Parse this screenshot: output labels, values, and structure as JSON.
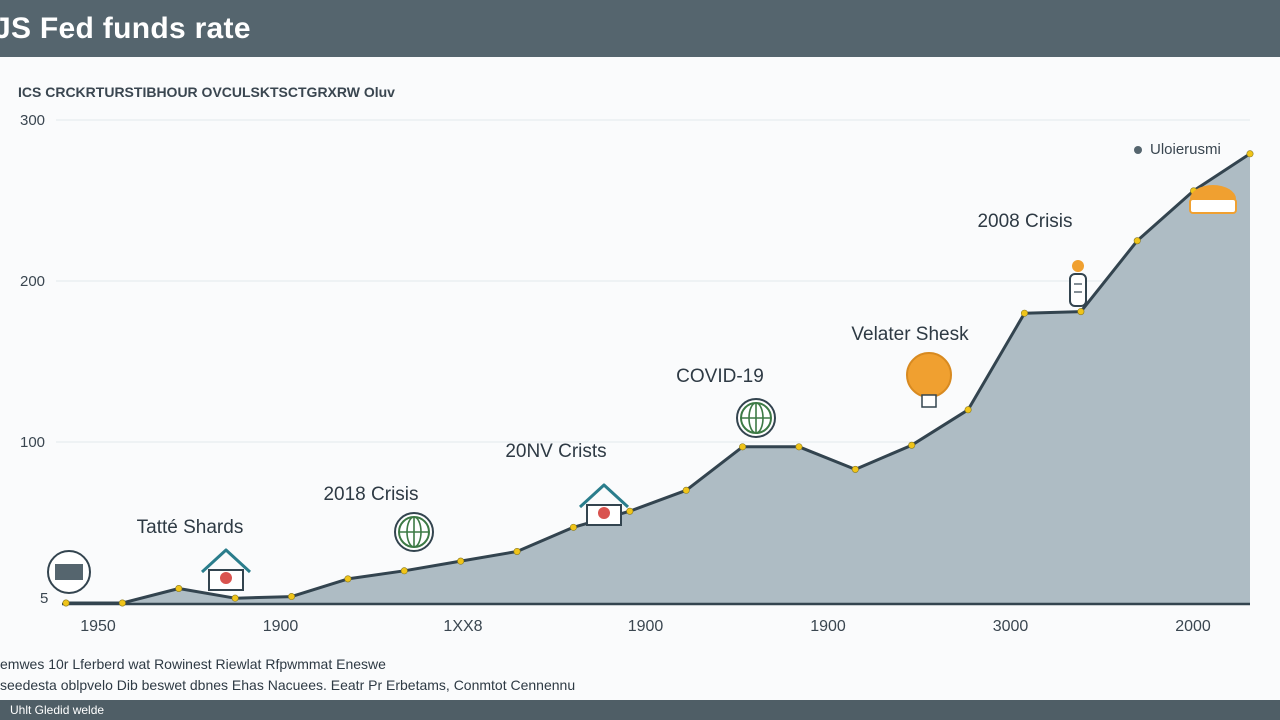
{
  "header": {
    "title": "JS Fed funds rate"
  },
  "subtitle": "ICS CRCKRTURSTIBHOUR OVCULSKTSCTGRXRW Oluv",
  "legend": {
    "label": "Uloierusmi"
  },
  "sources": [
    "emwes 10r Lferberd wat Rowinest Riewlat Rfpwmmat Eneswe",
    "seedesta oblpvelo Dib beswet dbnes Ehas Nacuees. Eeatr Pr Erbetams, Conmtot Cennennu"
  ],
  "footer": {
    "text": "Uhlt Gledid welde"
  },
  "colors": {
    "header": "#55656e",
    "area_fill": "#aebcc4",
    "line": "#33444f",
    "point": "#f0c419",
    "accent_orange": "#f0a030",
    "icon_green": "#3d7a45",
    "icon_teal": "#2a7d8c"
  },
  "chart_data": {
    "type": "area",
    "title": "JS Fed funds rate",
    "subtitle": "ICS CRCKRTURSTIBHOUR OVCULSKTSCTGRXRW Oluv",
    "y_ticks": [
      "300",
      "200",
      "100",
      "5"
    ],
    "x_ticks": [
      "1950",
      "1900",
      "1XX8",
      "1900",
      "1900",
      "3000",
      "2000"
    ],
    "ylim": [
      0,
      300
    ],
    "grid": true,
    "legend_position": "top-right",
    "series": [
      {
        "name": "Uloierusmi",
        "values": [
          0,
          0,
          9,
          3,
          4,
          15,
          20,
          26,
          32,
          47,
          57,
          70,
          97,
          97,
          83,
          98,
          120,
          180,
          181,
          225,
          256,
          279
        ]
      }
    ],
    "annotations": [
      {
        "label": "Tatté Shards",
        "index": 5,
        "icon": "house-icon"
      },
      {
        "label": "2018 Crisis",
        "index": 8,
        "icon": "globe-icon"
      },
      {
        "label": "20NV Crists",
        "index": 10,
        "icon": "house-icon"
      },
      {
        "label": "COVID-19",
        "index": 13,
        "icon": "globe-icon"
      },
      {
        "label": "Velater Shesk",
        "index": 17,
        "icon": "bulb-icon"
      },
      {
        "label": "2008 Crisis",
        "index": 18,
        "icon": "bottle-icon"
      },
      {
        "label": "",
        "index": 21,
        "icon": "bowl-icon"
      }
    ]
  }
}
